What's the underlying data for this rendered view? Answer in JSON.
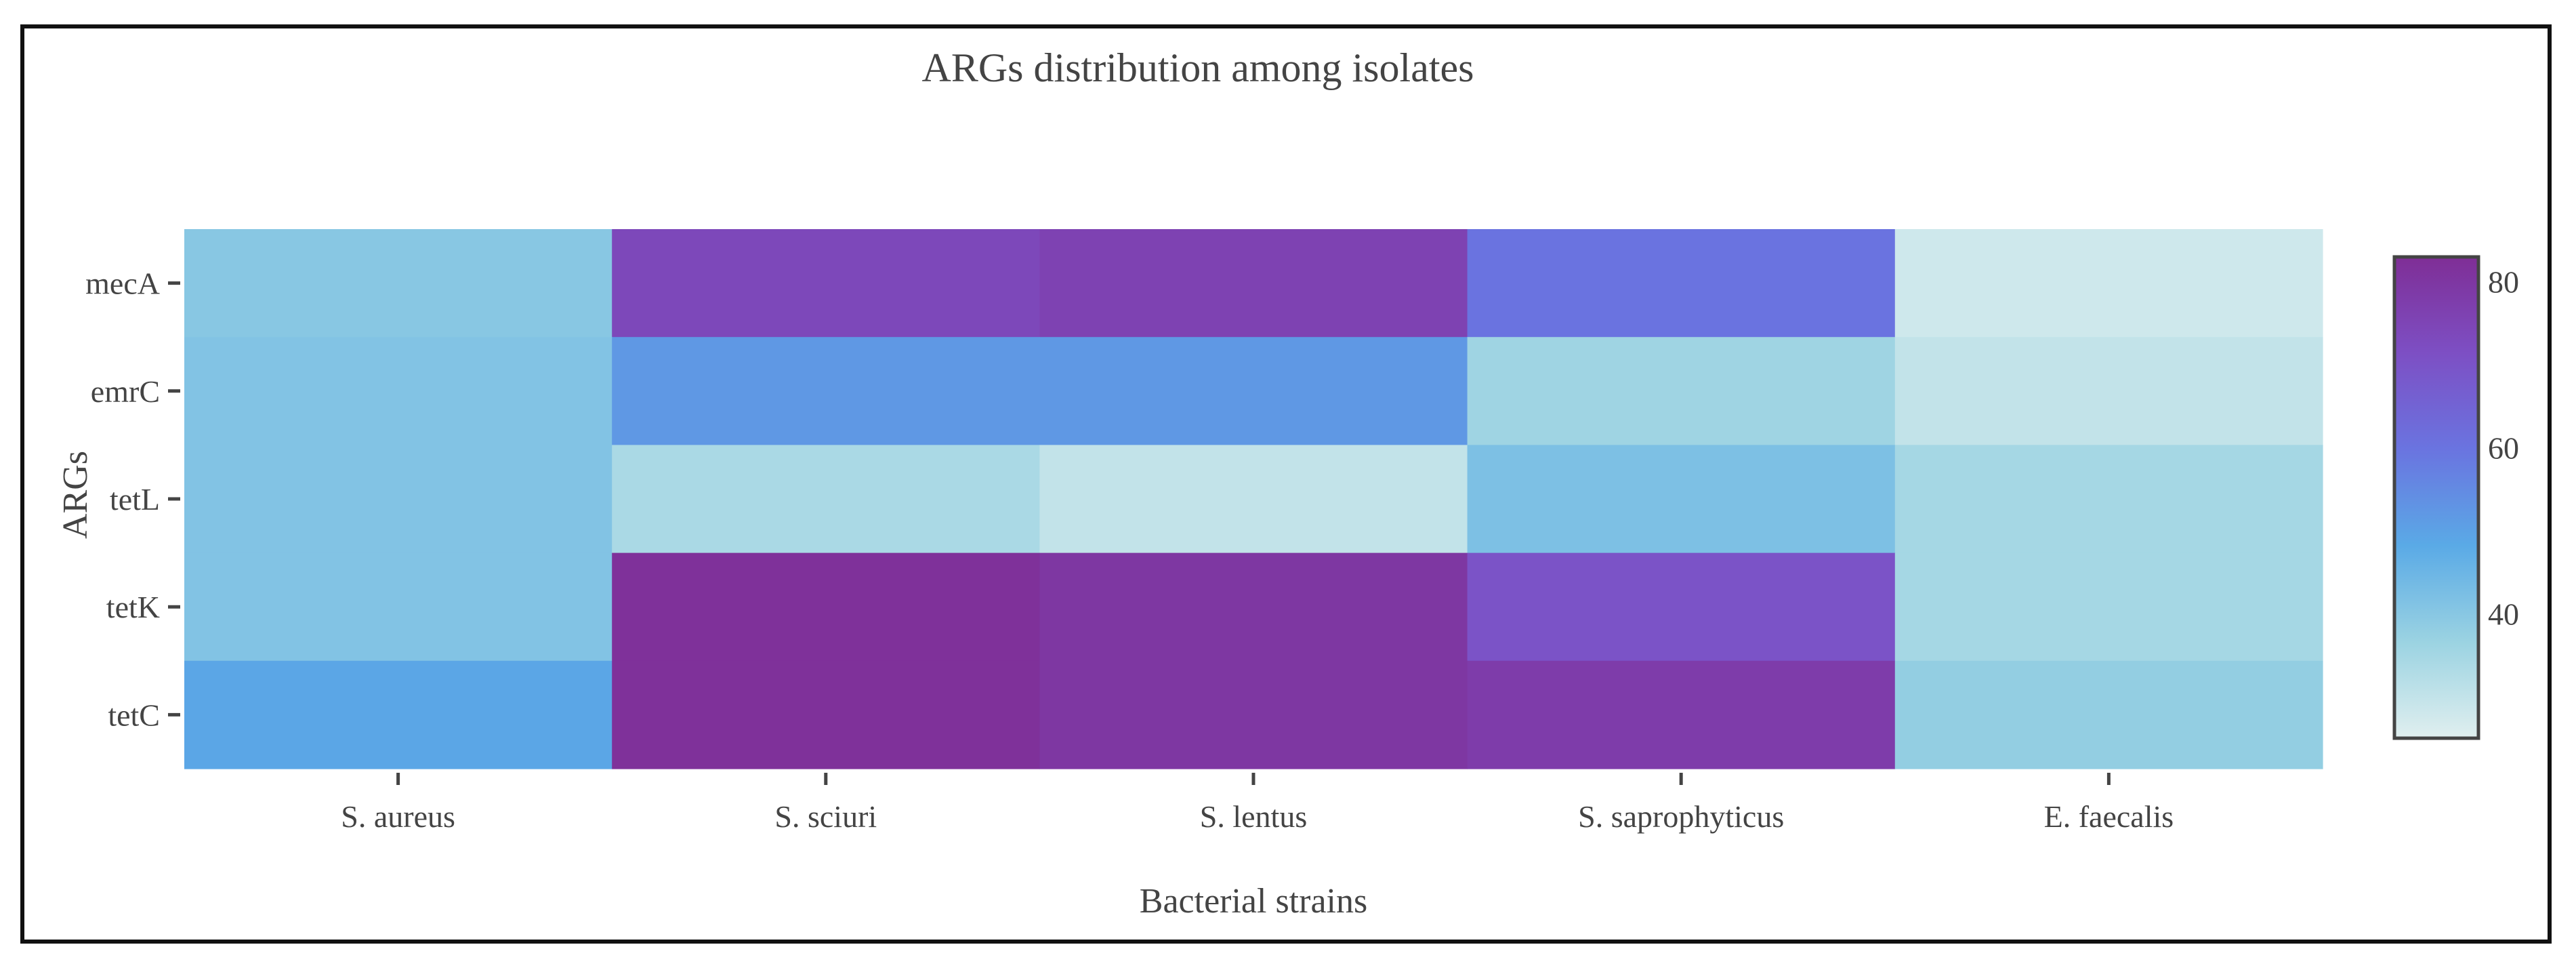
{
  "chart_data": {
    "type": "heatmap",
    "title": "ARGs distribution among isolates",
    "xlabel": "Bacterial strains",
    "ylabel": "ARGs",
    "categories": [
      "S. aureus",
      "S. sciuri",
      "S. lentus",
      "S. saprophyticus",
      "E. faecalis"
    ],
    "rows": [
      "mecA",
      "emrC",
      "tetL",
      "tetK",
      "tetC"
    ],
    "values": [
      [
        40,
        74,
        76,
        60,
        28
      ],
      [
        41,
        52,
        52,
        36,
        30
      ],
      [
        41,
        34,
        30,
        42,
        35
      ],
      [
        41,
        82,
        80,
        70,
        35
      ],
      [
        49,
        82,
        80,
        78,
        38
      ]
    ],
    "colorbar": {
      "min": 25,
      "max": 83,
      "ticks": [
        40,
        60,
        80
      ],
      "colorscale": [
        [
          0.0,
          "#e0efef"
        ],
        [
          0.2,
          "#9bd3e2"
        ],
        [
          0.4,
          "#5aaae6"
        ],
        [
          0.6,
          "#6a74e0"
        ],
        [
          0.8,
          "#7d4fc4"
        ],
        [
          1.0,
          "#7f2e96"
        ]
      ]
    }
  }
}
